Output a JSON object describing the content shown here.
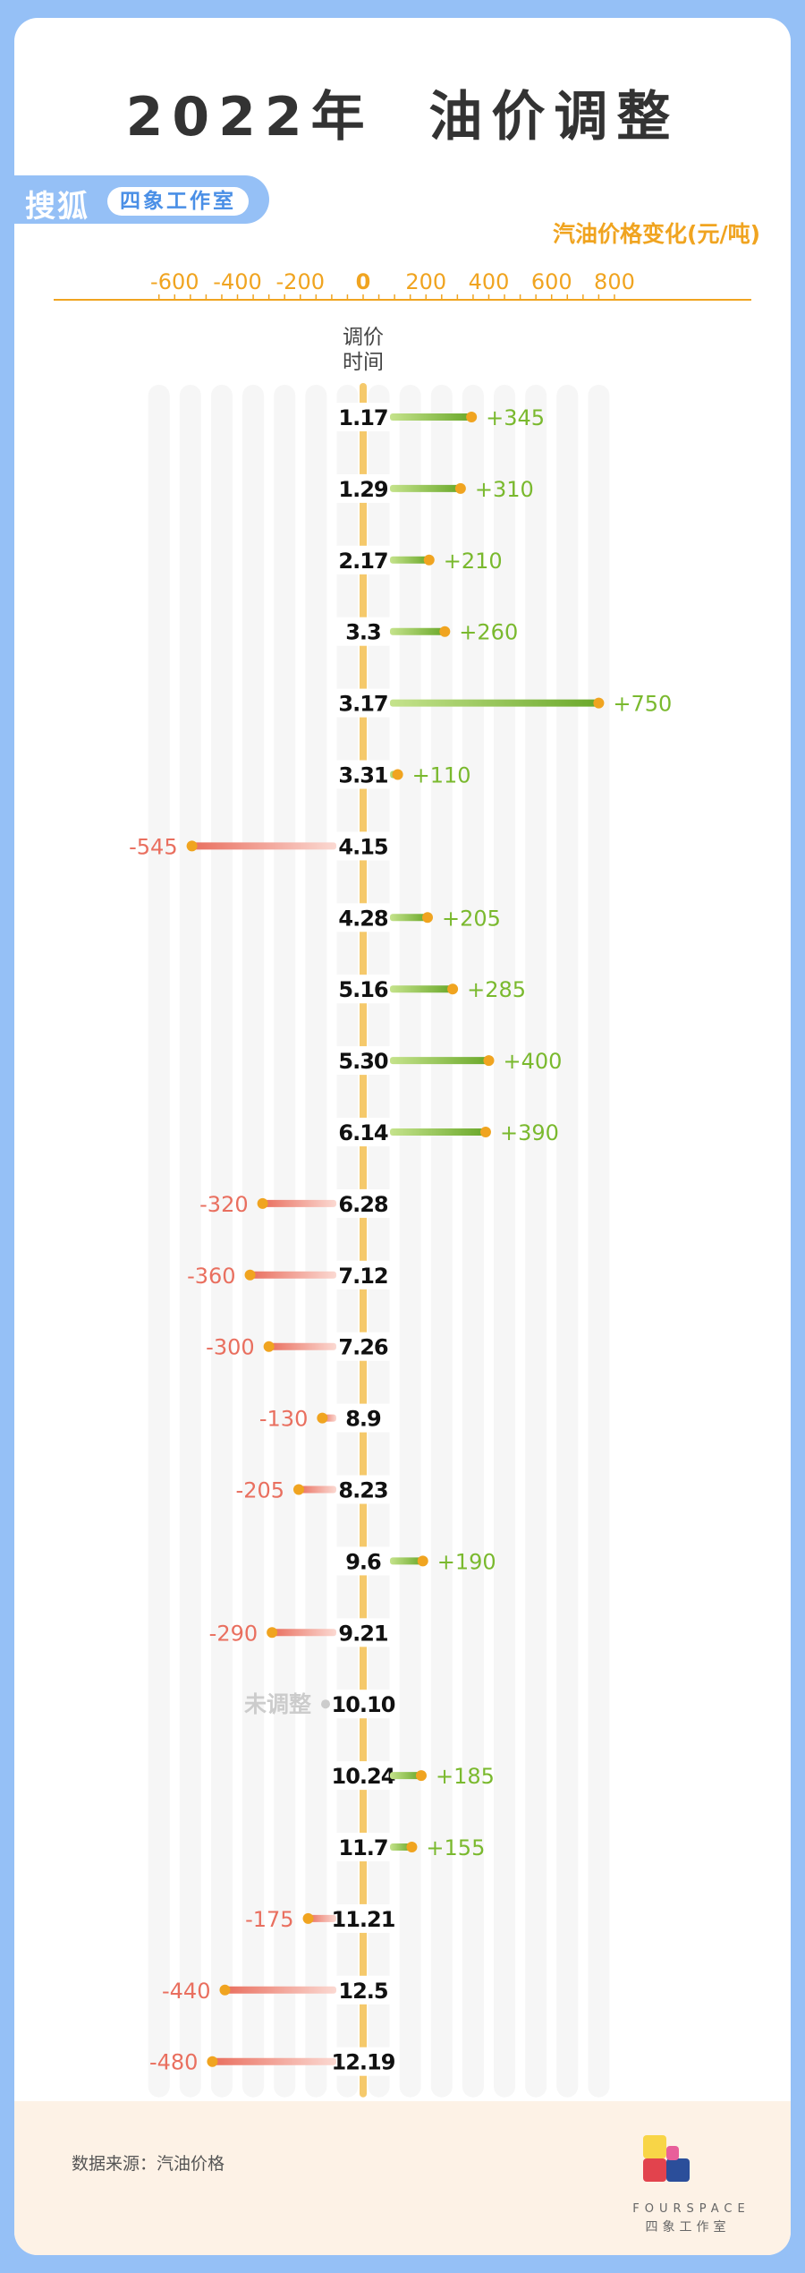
{
  "header": {
    "title": "2022年  油价调整",
    "brand_logo": "搜狐",
    "brand_studio": "四象工作室"
  },
  "footer": {
    "source": "数据来源：汽油价格",
    "logo_word": "FOURSPACE",
    "logo_sub": "四象工作室"
  },
  "colors": {
    "background": "#95c0f6",
    "axis": "#f0a420",
    "increase": "#7ab92e",
    "decrease": "#e96f5f",
    "dot": "#f0a420",
    "no_change": "#cccccc",
    "spine": "#f5c96b"
  },
  "chart_data": {
    "type": "bar",
    "orientation": "horizontal",
    "unit_label": "汽油价格变化(元/吨)",
    "category_axis_label": "调价\n时间",
    "xlim": [
      -600,
      800
    ],
    "xticks": [
      -600,
      -400,
      -200,
      0,
      200,
      400,
      600,
      800
    ],
    "grid": true,
    "categories": [
      "1.17",
      "1.29",
      "2.17",
      "3.3",
      "3.17",
      "3.31",
      "4.15",
      "4.28",
      "5.16",
      "5.30",
      "6.14",
      "6.28",
      "7.12",
      "7.26",
      "8.9",
      "8.23",
      "9.6",
      "9.21",
      "10.10",
      "10.24",
      "11.7",
      "11.21",
      "12.5",
      "12.19"
    ],
    "values": [
      345,
      310,
      210,
      260,
      750,
      110,
      -545,
      205,
      285,
      400,
      390,
      -320,
      -360,
      -300,
      -130,
      -205,
      190,
      -290,
      null,
      185,
      155,
      -175,
      -440,
      -480
    ],
    "value_labels": [
      "+345",
      "+310",
      "+210",
      "+260",
      "+750",
      "+110",
      "-545",
      "+205",
      "+285",
      "+400",
      "+390",
      "-320",
      "-360",
      "-300",
      "-130",
      "-205",
      "+190",
      "-290",
      "未调整",
      "+185",
      "+155",
      "-175",
      "-440",
      "-480"
    ]
  }
}
